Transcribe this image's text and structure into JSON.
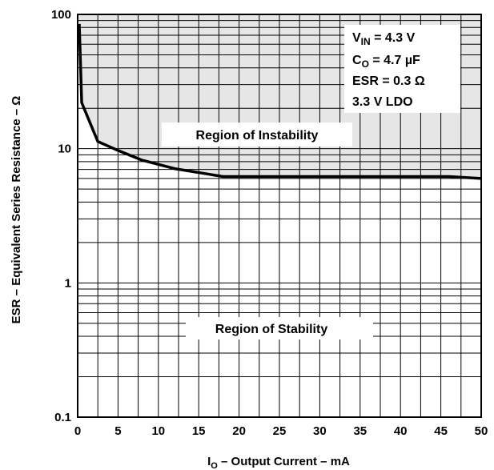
{
  "chart_data": {
    "type": "line",
    "x_scale": "linear",
    "y_scale": "log",
    "xlim": [
      0,
      50
    ],
    "ylim": [
      0.1,
      100
    ],
    "x_ticks": [
      "0",
      "5",
      "10",
      "15",
      "20",
      "25",
      "30",
      "35",
      "40",
      "45",
      "50"
    ],
    "y_ticks": [
      "0.1",
      "1",
      "10",
      "100"
    ],
    "y_tick_values": [
      0.1,
      1,
      10,
      100
    ],
    "x_tick_values": [
      0,
      5,
      10,
      15,
      20,
      25,
      30,
      35,
      40,
      45,
      50
    ],
    "xlabel_sub": "O",
    "xlabel_prefix": "I",
    "xlabel_rest": " – Output Current – mA",
    "ylabel": "ESR – Equivalent Series Resistance – Ω",
    "grid": true,
    "series": [
      {
        "x": [
          0.2,
          0.5,
          2.5,
          5,
          8,
          12,
          18,
          25,
          35,
          46,
          50
        ],
        "y": [
          85,
          22,
          11.3,
          9.7,
          8.2,
          7.1,
          6.2,
          6.2,
          6.2,
          6.2,
          6.0
        ]
      }
    ],
    "regions": {
      "instability": "Region of Instability",
      "stability": "Region of Stability"
    },
    "conditions": {
      "vin_main": "V",
      "vin_sub": "IN",
      "vin_value": " = 4.3 V",
      "co_main": "C",
      "co_sub": "O",
      "co_value": " = 4.7 µF",
      "esr": "ESR = 0.3 Ω",
      "ldo": "3.3 V LDO"
    },
    "colors": {
      "instability_fill": "#e6e6e6",
      "grid": "#000000",
      "curve": "#000000"
    }
  }
}
